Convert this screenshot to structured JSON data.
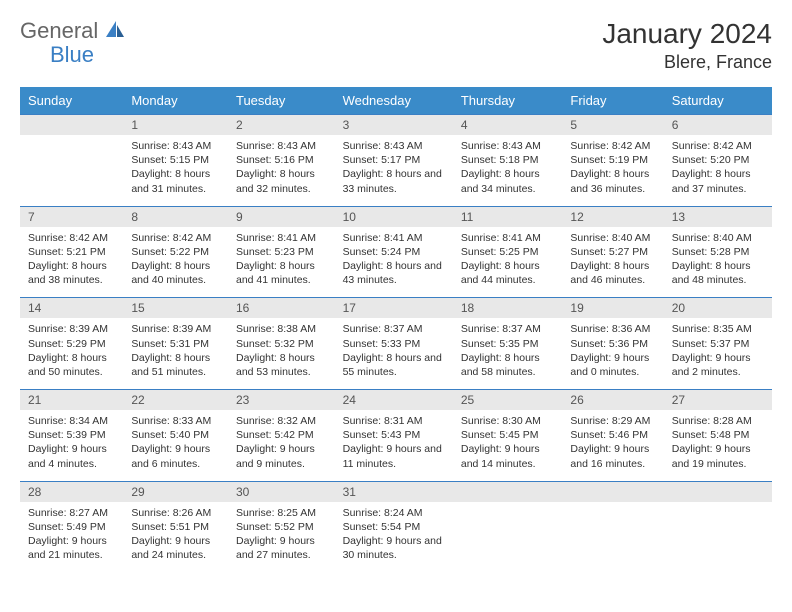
{
  "logo": {
    "part1": "General",
    "part2": "Blue"
  },
  "title": "January 2024",
  "location": "Blere, France",
  "colors": {
    "header_bg": "#3a8bc9",
    "header_text": "#ffffff",
    "divider": "#3a7fc4",
    "daynum_bg": "#e8e8e8",
    "text": "#333333",
    "logo_gray": "#666666",
    "logo_blue": "#3a7fc4",
    "page_bg": "#ffffff"
  },
  "day_names": [
    "Sunday",
    "Monday",
    "Tuesday",
    "Wednesday",
    "Thursday",
    "Friday",
    "Saturday"
  ],
  "weeks": [
    [
      {
        "n": "",
        "sr": "",
        "ss": "",
        "dl": ""
      },
      {
        "n": "1",
        "sr": "8:43 AM",
        "ss": "5:15 PM",
        "dl": "8 hours and 31 minutes."
      },
      {
        "n": "2",
        "sr": "8:43 AM",
        "ss": "5:16 PM",
        "dl": "8 hours and 32 minutes."
      },
      {
        "n": "3",
        "sr": "8:43 AM",
        "ss": "5:17 PM",
        "dl": "8 hours and 33 minutes."
      },
      {
        "n": "4",
        "sr": "8:43 AM",
        "ss": "5:18 PM",
        "dl": "8 hours and 34 minutes."
      },
      {
        "n": "5",
        "sr": "8:42 AM",
        "ss": "5:19 PM",
        "dl": "8 hours and 36 minutes."
      },
      {
        "n": "6",
        "sr": "8:42 AM",
        "ss": "5:20 PM",
        "dl": "8 hours and 37 minutes."
      }
    ],
    [
      {
        "n": "7",
        "sr": "8:42 AM",
        "ss": "5:21 PM",
        "dl": "8 hours and 38 minutes."
      },
      {
        "n": "8",
        "sr": "8:42 AM",
        "ss": "5:22 PM",
        "dl": "8 hours and 40 minutes."
      },
      {
        "n": "9",
        "sr": "8:41 AM",
        "ss": "5:23 PM",
        "dl": "8 hours and 41 minutes."
      },
      {
        "n": "10",
        "sr": "8:41 AM",
        "ss": "5:24 PM",
        "dl": "8 hours and 43 minutes."
      },
      {
        "n": "11",
        "sr": "8:41 AM",
        "ss": "5:25 PM",
        "dl": "8 hours and 44 minutes."
      },
      {
        "n": "12",
        "sr": "8:40 AM",
        "ss": "5:27 PM",
        "dl": "8 hours and 46 minutes."
      },
      {
        "n": "13",
        "sr": "8:40 AM",
        "ss": "5:28 PM",
        "dl": "8 hours and 48 minutes."
      }
    ],
    [
      {
        "n": "14",
        "sr": "8:39 AM",
        "ss": "5:29 PM",
        "dl": "8 hours and 50 minutes."
      },
      {
        "n": "15",
        "sr": "8:39 AM",
        "ss": "5:31 PM",
        "dl": "8 hours and 51 minutes."
      },
      {
        "n": "16",
        "sr": "8:38 AM",
        "ss": "5:32 PM",
        "dl": "8 hours and 53 minutes."
      },
      {
        "n": "17",
        "sr": "8:37 AM",
        "ss": "5:33 PM",
        "dl": "8 hours and 55 minutes."
      },
      {
        "n": "18",
        "sr": "8:37 AM",
        "ss": "5:35 PM",
        "dl": "8 hours and 58 minutes."
      },
      {
        "n": "19",
        "sr": "8:36 AM",
        "ss": "5:36 PM",
        "dl": "9 hours and 0 minutes."
      },
      {
        "n": "20",
        "sr": "8:35 AM",
        "ss": "5:37 PM",
        "dl": "9 hours and 2 minutes."
      }
    ],
    [
      {
        "n": "21",
        "sr": "8:34 AM",
        "ss": "5:39 PM",
        "dl": "9 hours and 4 minutes."
      },
      {
        "n": "22",
        "sr": "8:33 AM",
        "ss": "5:40 PM",
        "dl": "9 hours and 6 minutes."
      },
      {
        "n": "23",
        "sr": "8:32 AM",
        "ss": "5:42 PM",
        "dl": "9 hours and 9 minutes."
      },
      {
        "n": "24",
        "sr": "8:31 AM",
        "ss": "5:43 PM",
        "dl": "9 hours and 11 minutes."
      },
      {
        "n": "25",
        "sr": "8:30 AM",
        "ss": "5:45 PM",
        "dl": "9 hours and 14 minutes."
      },
      {
        "n": "26",
        "sr": "8:29 AM",
        "ss": "5:46 PM",
        "dl": "9 hours and 16 minutes."
      },
      {
        "n": "27",
        "sr": "8:28 AM",
        "ss": "5:48 PM",
        "dl": "9 hours and 19 minutes."
      }
    ],
    [
      {
        "n": "28",
        "sr": "8:27 AM",
        "ss": "5:49 PM",
        "dl": "9 hours and 21 minutes."
      },
      {
        "n": "29",
        "sr": "8:26 AM",
        "ss": "5:51 PM",
        "dl": "9 hours and 24 minutes."
      },
      {
        "n": "30",
        "sr": "8:25 AM",
        "ss": "5:52 PM",
        "dl": "9 hours and 27 minutes."
      },
      {
        "n": "31",
        "sr": "8:24 AM",
        "ss": "5:54 PM",
        "dl": "9 hours and 30 minutes."
      },
      {
        "n": "",
        "sr": "",
        "ss": "",
        "dl": ""
      },
      {
        "n": "",
        "sr": "",
        "ss": "",
        "dl": ""
      },
      {
        "n": "",
        "sr": "",
        "ss": "",
        "dl": ""
      }
    ]
  ],
  "labels": {
    "sunrise": "Sunrise:",
    "sunset": "Sunset:",
    "daylight": "Daylight:"
  }
}
